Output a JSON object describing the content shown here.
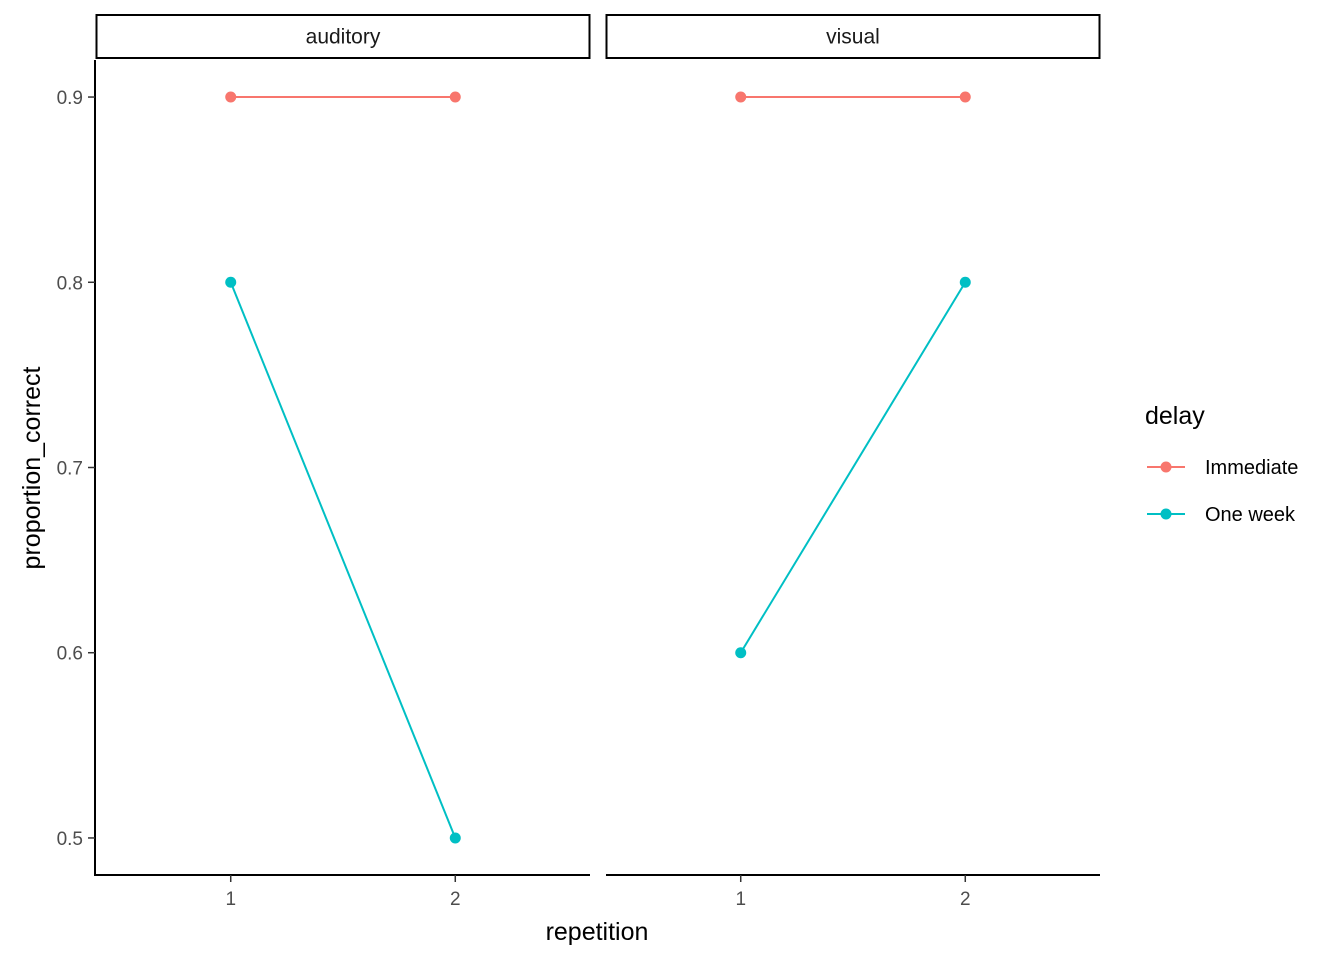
{
  "chart_data": {
    "type": "line",
    "facet_variable": "modality",
    "panels": [
      "auditory",
      "visual"
    ],
    "x": [
      1,
      2
    ],
    "xlabel": "repetition",
    "ylabel": "proportion_correct",
    "ylim": [
      0.48,
      0.92
    ],
    "yticks": [
      0.5,
      0.6,
      0.7,
      0.8,
      0.9
    ],
    "ytick_labels": [
      "0.5",
      "0.6",
      "0.7",
      "0.8",
      "0.9"
    ],
    "xticks": [
      1,
      2
    ],
    "xtick_labels": [
      "1",
      "2"
    ],
    "grid": false,
    "legend": {
      "title": "delay",
      "position": "right"
    },
    "series": [
      {
        "name": "Immediate",
        "color": "#F8766D",
        "values": {
          "auditory": [
            0.9,
            0.9
          ],
          "visual": [
            0.9,
            0.9
          ]
        }
      },
      {
        "name": "One week",
        "color": "#00BFC4",
        "values": {
          "auditory": [
            0.8,
            0.5
          ],
          "visual": [
            0.6,
            0.8
          ]
        }
      }
    ]
  }
}
